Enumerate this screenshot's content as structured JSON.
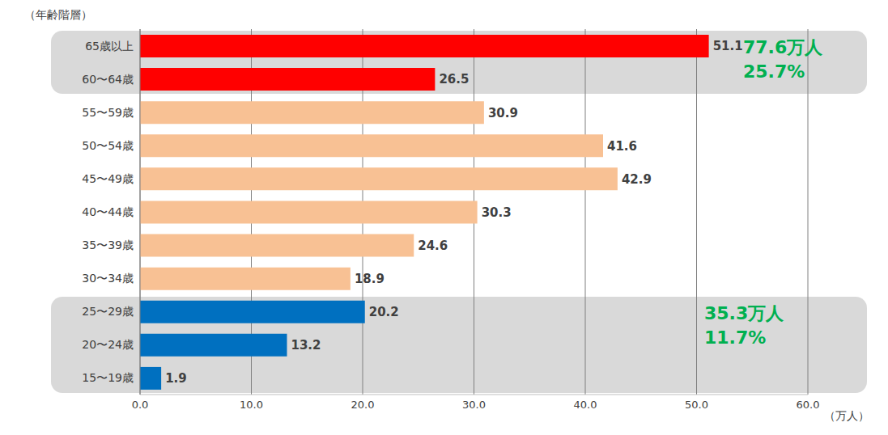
{
  "chart_data": {
    "type": "bar",
    "orientation": "horizontal",
    "y_label": "（年齢階層）",
    "x_label": "（万人）",
    "categories": [
      "65歳以上",
      "60〜64歳",
      "55〜59歳",
      "50〜54歳",
      "45〜49歳",
      "40〜44歳",
      "35〜39歳",
      "30〜34歳",
      "25〜29歳",
      "20〜24歳",
      "15〜19歳"
    ],
    "values": [
      51.1,
      26.5,
      30.9,
      41.6,
      42.9,
      30.3,
      24.6,
      18.9,
      20.2,
      13.2,
      1.9
    ],
    "colors": [
      "#ff0000",
      "#ff0000",
      "#f8c194",
      "#f8c194",
      "#f8c194",
      "#f8c194",
      "#f8c194",
      "#f8c194",
      "#0070c0",
      "#0070c0",
      "#0070c0"
    ],
    "xlim": [
      0,
      60
    ],
    "xticks": [
      {
        "value": 0,
        "label": "0.0"
      },
      {
        "value": 10,
        "label": "10.0"
      },
      {
        "value": 20,
        "label": "20.0"
      },
      {
        "value": 30,
        "label": "30.0"
      },
      {
        "value": 40,
        "label": "40.0"
      },
      {
        "value": 50,
        "label": "50.0"
      },
      {
        "value": 60,
        "label": "60.0"
      }
    ],
    "grid": true,
    "data_labels": true,
    "annotations": [
      "77.6万人",
      "25.7%",
      "35.3万人",
      "11.7%"
    ]
  }
}
